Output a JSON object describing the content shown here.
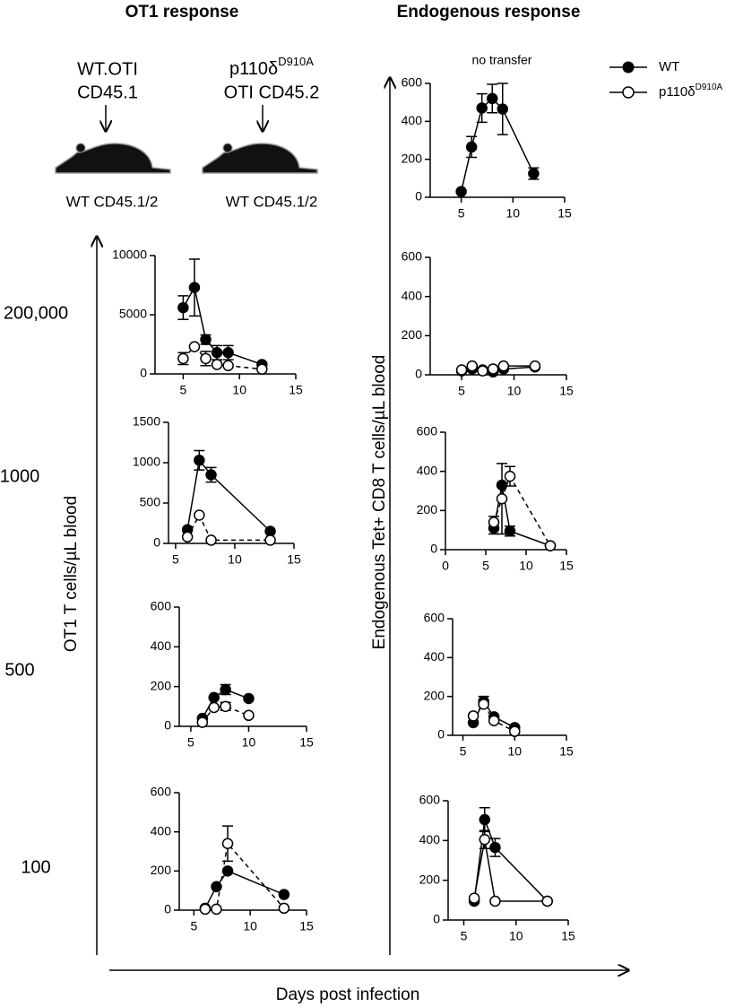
{
  "figure": {
    "headers": [
      "OT1 response",
      "Endogenous response"
    ],
    "donors": [
      {
        "lines": [
          {
            "text": "WT.OTI"
          },
          {
            "text": "CD45.1"
          }
        ]
      },
      {
        "lines": [
          {
            "text": "p110δ",
            "sup": "D910A"
          },
          {
            "text": "OTI CD45.2"
          }
        ]
      }
    ],
    "recipients": [
      "WT CD45.1/2",
      "WT CD45.1/2"
    ],
    "row_labels": [
      "200,000",
      "1000",
      "500",
      "100"
    ],
    "ylabel_left": "OT1 T cells/µL blood",
    "ylabel_right": "Endogenous Tet+ CD8 T cells/µL blood",
    "xlabel": "Days post infection",
    "legend": [
      {
        "text": "WT",
        "marker": "filled"
      },
      {
        "text": "p110δ",
        "sup": "D910A",
        "marker": "open"
      }
    ]
  },
  "chart_data": [
    {
      "type": "line",
      "annotation": "no transfer",
      "xlim": [
        2,
        15
      ],
      "ylim": [
        0,
        600
      ],
      "xticks": [
        5,
        10,
        15
      ],
      "yticks": [
        0,
        200,
        400,
        600
      ],
      "series": [
        {
          "marker": "filled",
          "dash": false,
          "color": "#000000",
          "x": [
            5,
            6,
            7,
            8,
            9,
            12
          ],
          "values": [
            30,
            265,
            470,
            520,
            465,
            125
          ],
          "errors": [
            null,
            55,
            75,
            75,
            135,
            30
          ]
        }
      ]
    },
    {
      "type": "line",
      "xlim": [
        2.5,
        15
      ],
      "ylim": [
        0,
        10000
      ],
      "xticks": [
        5,
        10,
        15
      ],
      "yticks": [
        0,
        5000,
        10000
      ],
      "series": [
        {
          "marker": "filled",
          "dash": false,
          "color": "#000000",
          "x": [
            5,
            6,
            7,
            8,
            9,
            12
          ],
          "values": [
            5600,
            7300,
            2900,
            1800,
            1800,
            800
          ],
          "errors": [
            1000,
            2400,
            400,
            600,
            600,
            null
          ]
        },
        {
          "marker": "open",
          "dash": true,
          "color": "#000000",
          "x": [
            5,
            6,
            7,
            8,
            9,
            12
          ],
          "values": [
            1300,
            2300,
            1300,
            800,
            700,
            400
          ],
          "errors": [
            500,
            null,
            600,
            null,
            null,
            null
          ]
        }
      ]
    },
    {
      "type": "line",
      "xlim": [
        2,
        15
      ],
      "ylim": [
        0,
        600
      ],
      "xticks": [
        5,
        10,
        15
      ],
      "yticks": [
        0,
        200,
        400,
        600
      ],
      "series": [
        {
          "marker": "filled",
          "dash": false,
          "color": "#000000",
          "x": [
            5,
            6,
            7,
            8,
            9,
            12
          ],
          "values": [
            20,
            30,
            25,
            15,
            30,
            40
          ]
        },
        {
          "marker": "open",
          "dash": false,
          "color": "#000000",
          "x": [
            5,
            6,
            7,
            8,
            9,
            12
          ],
          "values": [
            25,
            45,
            20,
            30,
            45,
            45
          ]
        }
      ]
    },
    {
      "type": "line",
      "xlim": [
        4.4,
        15
      ],
      "ylim": [
        0,
        1500
      ],
      "xticks": [
        5,
        10,
        15
      ],
      "yticks": [
        0,
        500,
        1000,
        1500
      ],
      "series": [
        {
          "marker": "filled",
          "dash": false,
          "color": "#000000",
          "x": [
            6,
            7,
            8,
            13
          ],
          "values": [
            170,
            1030,
            850,
            150
          ],
          "errors": [
            null,
            120,
            90,
            null
          ]
        },
        {
          "marker": "open",
          "dash": true,
          "color": "#000000",
          "x": [
            6,
            7,
            8,
            13
          ],
          "values": [
            80,
            350,
            40,
            40
          ]
        }
      ]
    },
    {
      "type": "line",
      "xlim": [
        0,
        15
      ],
      "ylim": [
        0,
        600
      ],
      "xticks": [
        0,
        5,
        10,
        15
      ],
      "yticks": [
        0,
        200,
        400,
        600
      ],
      "series": [
        {
          "marker": "filled",
          "dash": false,
          "color": "#000000",
          "x": [
            6,
            7,
            8,
            13
          ],
          "values": [
            110,
            330,
            95,
            20
          ],
          "errors": [
            30,
            null,
            25,
            null
          ]
        },
        {
          "marker": "open",
          "dash": true,
          "color": "#000000",
          "x": [
            6,
            7,
            8,
            13
          ],
          "values": [
            140,
            260,
            375,
            20
          ],
          "errors": [
            30,
            180,
            50,
            null
          ]
        }
      ]
    },
    {
      "type": "line",
      "xlim": [
        4,
        15
      ],
      "ylim": [
        0,
        600
      ],
      "xticks": [
        5,
        10,
        15
      ],
      "yticks": [
        0,
        200,
        400,
        600
      ],
      "series": [
        {
          "marker": "filled",
          "dash": false,
          "color": "#000000",
          "x": [
            6,
            7,
            8,
            10
          ],
          "values": [
            40,
            145,
            185,
            140
          ],
          "errors": [
            null,
            null,
            25,
            null
          ]
        },
        {
          "marker": "open",
          "dash": true,
          "color": "#000000",
          "x": [
            6,
            7,
            8,
            10
          ],
          "values": [
            20,
            95,
            100,
            55
          ],
          "errors": [
            null,
            null,
            20,
            null
          ]
        }
      ]
    },
    {
      "type": "line",
      "xlim": [
        4,
        15
      ],
      "ylim": [
        0,
        600
      ],
      "xticks": [
        5,
        10,
        15
      ],
      "yticks": [
        0,
        200,
        400,
        600
      ],
      "series": [
        {
          "marker": "filled",
          "dash": false,
          "color": "#000000",
          "x": [
            6,
            7,
            8,
            10
          ],
          "values": [
            65,
            175,
            95,
            40
          ],
          "errors": [
            null,
            25,
            null,
            null
          ]
        },
        {
          "marker": "open",
          "dash": true,
          "color": "#000000",
          "x": [
            6,
            7,
            8,
            10
          ],
          "values": [
            100,
            160,
            75,
            20
          ]
        }
      ]
    },
    {
      "type": "line",
      "xlim": [
        3.7,
        15
      ],
      "ylim": [
        0,
        600
      ],
      "xticks": [
        5,
        10,
        15
      ],
      "yticks": [
        0,
        200,
        400,
        600
      ],
      "series": [
        {
          "marker": "filled",
          "dash": false,
          "color": "#000000",
          "x": [
            6,
            7,
            8,
            13
          ],
          "values": [
            10,
            120,
            200,
            80
          ]
        },
        {
          "marker": "open",
          "dash": true,
          "color": "#000000",
          "x": [
            6,
            7,
            8,
            13
          ],
          "values": [
            5,
            5,
            340,
            10
          ],
          "errors": [
            null,
            null,
            90,
            null
          ]
        }
      ]
    },
    {
      "type": "line",
      "xlim": [
        3.5,
        15
      ],
      "ylim": [
        0,
        600
      ],
      "xticks": [
        5,
        10,
        15
      ],
      "yticks": [
        0,
        200,
        400,
        600
      ],
      "series": [
        {
          "marker": "filled",
          "dash": false,
          "color": "#000000",
          "x": [
            6,
            7,
            8,
            13
          ],
          "values": [
            95,
            505,
            365,
            95
          ],
          "errors": [
            null,
            60,
            45,
            null
          ]
        },
        {
          "marker": "open",
          "dash": false,
          "color": "#000000",
          "x": [
            6,
            7,
            8,
            13
          ],
          "values": [
            110,
            405,
            95,
            95
          ],
          "errors": [
            null,
            45,
            null,
            null
          ]
        }
      ]
    }
  ]
}
